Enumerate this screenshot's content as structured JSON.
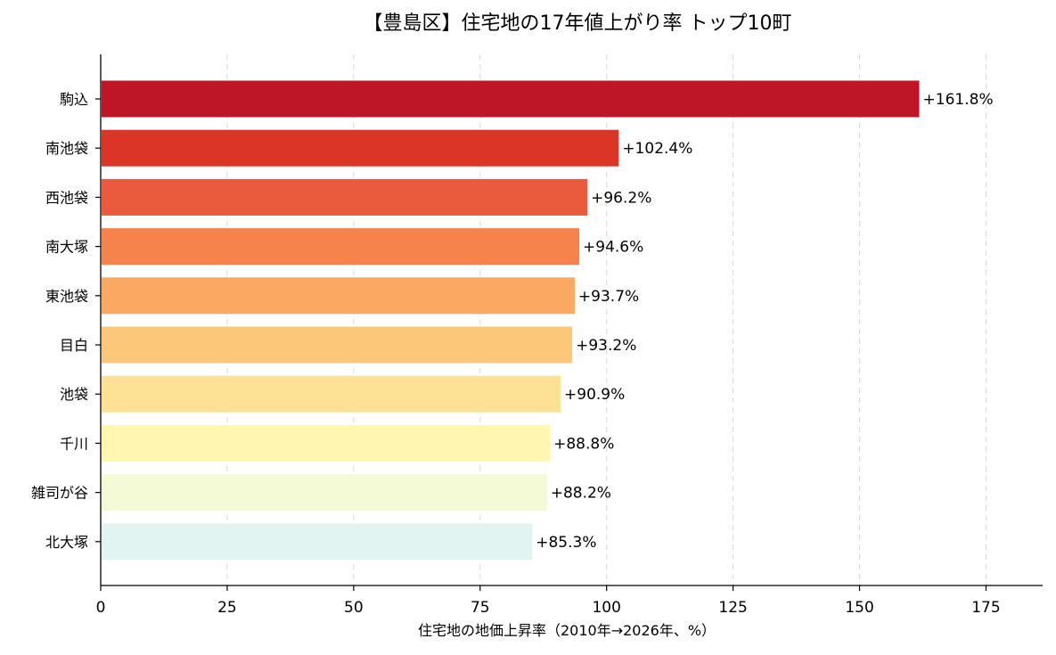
{
  "chart_data": {
    "type": "bar",
    "orientation": "horizontal",
    "title": "【豊島区】住宅地の17年値上がり率 トップ10町",
    "xlabel": "住宅地の地価上昇率（2010年→2026年、%）",
    "ylabel": "",
    "xlim": [
      0,
      186
    ],
    "xticks": [
      0,
      25,
      50,
      75,
      100,
      125,
      150,
      175
    ],
    "grid": "x-dashed",
    "categories": [
      "駒込",
      "南池袋",
      "西池袋",
      "南大塚",
      "東池袋",
      "目白",
      "池袋",
      "千川",
      "雑司が谷",
      "北大塚"
    ],
    "values": [
      161.8,
      102.4,
      96.2,
      94.6,
      93.7,
      93.2,
      90.9,
      88.8,
      88.2,
      85.3
    ],
    "value_labels": [
      "+161.8%",
      "+102.4%",
      "+96.2%",
      "+94.6%",
      "+93.7%",
      "+93.2%",
      "+90.9%",
      "+88.8%",
      "+88.2%",
      "+85.3%"
    ],
    "colors": [
      "#be1626",
      "#db3528",
      "#ea5a3c",
      "#f6824c",
      "#fba862",
      "#fdc77a",
      "#fde194",
      "#fff6b2",
      "#f4fad5",
      "#e2f4f2"
    ]
  }
}
